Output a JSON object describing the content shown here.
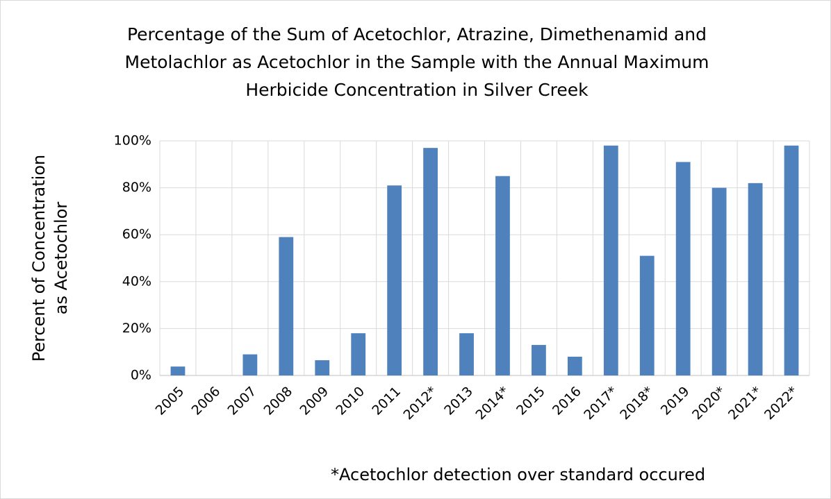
{
  "chart_data": {
    "type": "bar",
    "title": "Percentage of the Sum of Acetochlor, Atrazine, Dimethenamid and Metolachlor as Acetochlor in the Sample with the Annual Maximum Herbicide Concentration in Silver Creek",
    "y_label": "Percent of Concentration as Acetochlor",
    "note": "*Acetochlor detection over standard occured",
    "categories": [
      "2005",
      "2006",
      "2007",
      "2008",
      "2009",
      "2010",
      "2011",
      "2012*",
      "2013",
      "2014*",
      "2015",
      "2016",
      "2017*",
      "2018*",
      "2019",
      "2020*",
      "2021*",
      "2022*"
    ],
    "values": [
      3.8,
      0,
      9,
      59,
      6.5,
      18,
      81,
      97,
      18,
      85,
      13,
      8,
      98,
      51,
      91,
      80,
      82,
      98
    ],
    "color": "#4f81bd",
    "ylim": [
      0,
      100
    ],
    "yticks": [
      {
        "value": 0,
        "label": "0%"
      },
      {
        "value": 20,
        "label": "20%"
      },
      {
        "value": 40,
        "label": "40%"
      },
      {
        "value": 60,
        "label": "60%"
      },
      {
        "value": 80,
        "label": "80%"
      },
      {
        "value": 100,
        "label": "100%"
      }
    ],
    "grid": true
  }
}
